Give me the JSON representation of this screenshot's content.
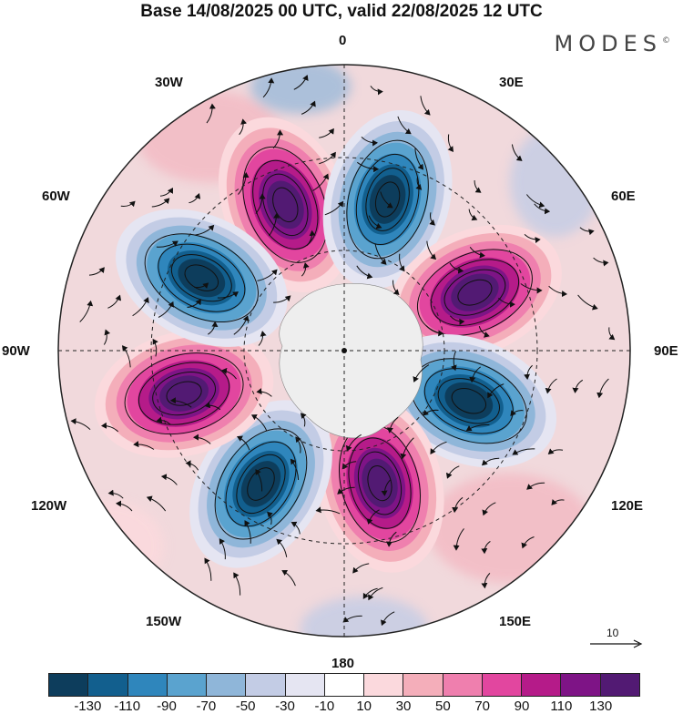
{
  "title": "Base 14/08/2025 00 UTC, valid 22/08/2025 12 UTC",
  "brand": "MODES",
  "brand_mark": "©",
  "longitude_labels": {
    "lon_0": "0",
    "lon_30e": "30E",
    "lon_60e": "60E",
    "lon_90e": "90E",
    "lon_120e": "120E",
    "lon_150e": "150E",
    "lon_180": "180",
    "lon_150w": "150W",
    "lon_120w": "120W",
    "lon_90w": "90W",
    "lon_60w": "60W",
    "lon_30w": "30W"
  },
  "vector_reference": "10",
  "colorbar": {
    "colors": [
      "#0d3d5c",
      "#125f8e",
      "#2f86bc",
      "#5aa3cf",
      "#8fb6d9",
      "#c3cce5",
      "#e5e5f2",
      "#ffffff",
      "#fbd9dd",
      "#f4aeba",
      "#ef7fae",
      "#e2469f",
      "#b51b89",
      "#7e1486",
      "#521a73"
    ],
    "ticks": [
      "-130",
      "-110",
      "-90",
      "-70",
      "-50",
      "-30",
      "-10",
      "10",
      "30",
      "50",
      "70",
      "90",
      "110",
      "130"
    ]
  },
  "anomaly_cells": [
    {
      "name": "positive-anomaly-30w",
      "angle_deg": -22,
      "radius": 0.55,
      "value": 130
    },
    {
      "name": "negative-anomaly-15e",
      "angle_deg": 16,
      "radius": 0.55,
      "value": -130
    },
    {
      "name": "positive-anomaly-65e",
      "angle_deg": 66,
      "radius": 0.5,
      "value": 130
    },
    {
      "name": "negative-anomaly-110e",
      "angle_deg": 112,
      "radius": 0.47,
      "value": -110
    },
    {
      "name": "positive-anomaly-165e",
      "angle_deg": 165,
      "radius": 0.48,
      "value": 110
    },
    {
      "name": "negative-anomaly-150w",
      "angle_deg": 212,
      "radius": 0.55,
      "value": -130
    },
    {
      "name": "positive-anomaly-105w",
      "angle_deg": 255,
      "radius": 0.58,
      "value": 130
    },
    {
      "name": "negative-anomaly-65w",
      "angle_deg": 297,
      "radius": 0.56,
      "value": -130
    }
  ]
}
